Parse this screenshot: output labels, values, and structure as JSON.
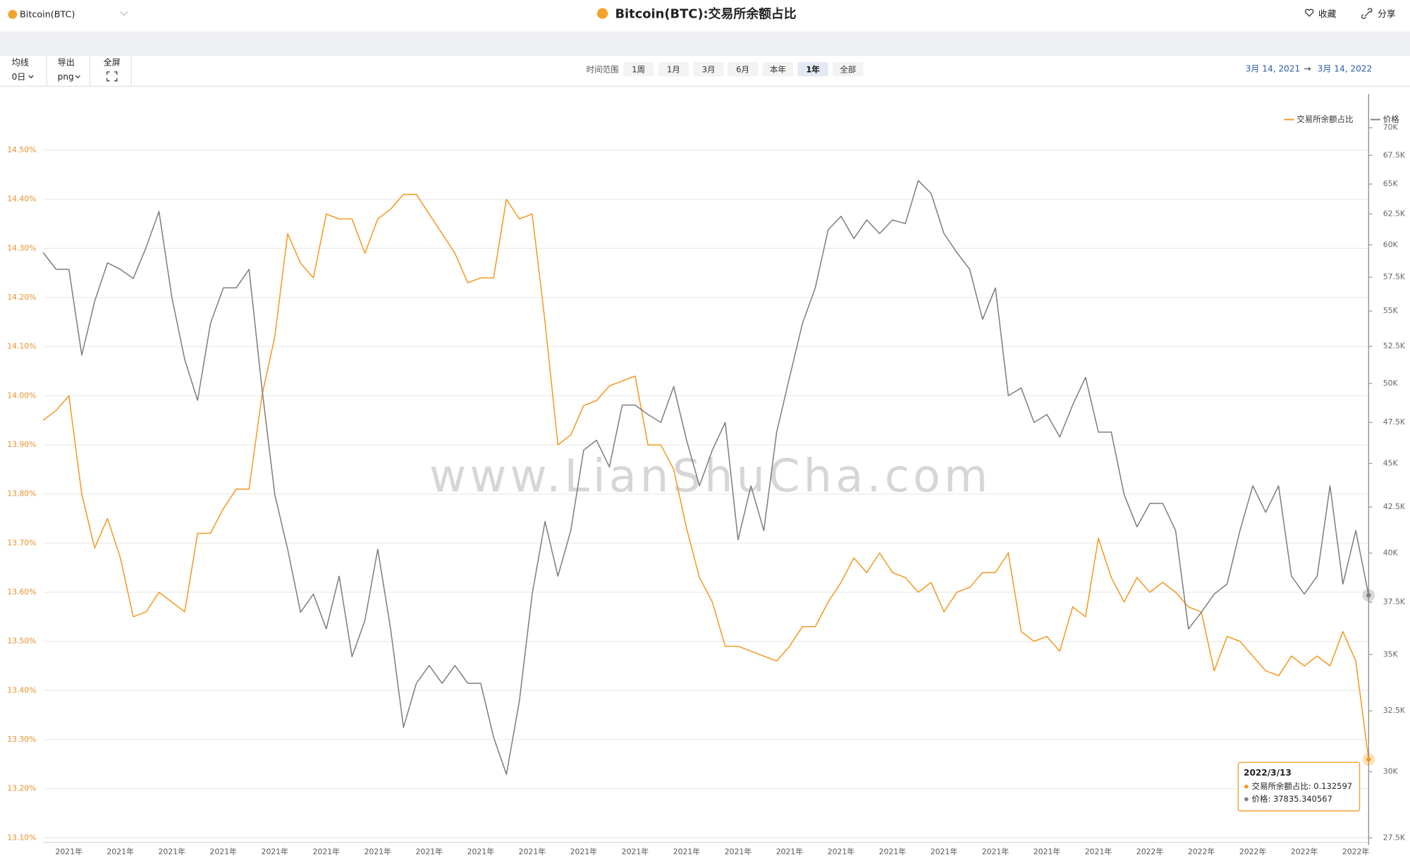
{
  "header": {
    "asset": "Bitcoin(BTC)",
    "title": "Bitcoin(BTC):交易所余额占比",
    "favorite": "收藏",
    "share": "分享"
  },
  "toolbar": {
    "ma_label": "均线",
    "ma_value": "0日",
    "export_label": "导出",
    "export_value": "png",
    "fullscreen": "全屏",
    "range_label": "时间范围",
    "ranges": [
      "1周",
      "1月",
      "3月",
      "6月",
      "本年",
      "1年",
      "全部"
    ],
    "active_range": "1年",
    "date_from": "3月 14, 2021",
    "arrow": "→",
    "date_to": "3月 14, 2022"
  },
  "chart_data": {
    "type": "line",
    "watermark": "www.LianShuCha.com",
    "categories": [
      null,
      null,
      "2021年",
      null,
      null,
      null,
      "2021年",
      null,
      null,
      null,
      "2021年",
      null,
      null,
      null,
      "2021年",
      null,
      null,
      null,
      "2021年",
      null,
      null,
      null,
      "2021年",
      null,
      null,
      null,
      "2021年",
      null,
      null,
      null,
      "2021年",
      null,
      null,
      null,
      "2021年",
      null,
      null,
      null,
      "2021年",
      null,
      null,
      null,
      "2021年",
      null,
      null,
      null,
      "2021年",
      null,
      null,
      null,
      "2021年",
      null,
      null,
      null,
      "2021年",
      null,
      null,
      null,
      "2021年",
      null,
      null,
      null,
      "2021年",
      null,
      null,
      null,
      "2021年",
      null,
      null,
      null,
      "2021年",
      null,
      null,
      null,
      "2021年",
      null,
      null,
      null,
      "2021年",
      null,
      null,
      null,
      "2021年",
      null,
      null,
      null,
      "2022年",
      null,
      null,
      null,
      "2022年",
      null,
      null,
      null,
      "2022年",
      null,
      null,
      null,
      "2022年",
      null,
      null,
      null,
      "2022年",
      null
    ],
    "series": [
      {
        "name": "交易所余额占比",
        "color": "#f39a21",
        "axis": "y",
        "values": [
          13.95,
          13.97,
          14.0,
          13.8,
          13.69,
          13.75,
          13.67,
          13.55,
          13.56,
          13.6,
          13.58,
          13.56,
          13.72,
          13.72,
          13.77,
          13.81,
          13.81,
          14.0,
          14.12,
          14.33,
          14.27,
          14.24,
          14.37,
          14.36,
          14.36,
          14.29,
          14.36,
          14.38,
          14.41,
          14.41,
          14.37,
          14.33,
          14.29,
          14.23,
          14.24,
          14.24,
          14.4,
          14.36,
          14.37,
          14.15,
          13.9,
          13.92,
          13.98,
          13.99,
          14.02,
          14.03,
          14.04,
          13.9,
          13.9,
          13.85,
          13.73,
          13.63,
          13.58,
          13.49,
          13.49,
          13.48,
          13.47,
          13.46,
          13.49,
          13.53,
          13.53,
          13.58,
          13.62,
          13.67,
          13.64,
          13.68,
          13.64,
          13.63,
          13.6,
          13.62,
          13.56,
          13.6,
          13.61,
          13.64,
          13.64,
          13.68,
          13.52,
          13.5,
          13.51,
          13.48,
          13.57,
          13.55,
          13.71,
          13.63,
          13.58,
          13.63,
          13.6,
          13.62,
          13.6,
          13.57,
          13.56,
          13.44,
          13.51,
          13.5,
          13.47,
          13.44,
          13.43,
          13.47,
          13.45,
          13.47,
          13.45,
          13.52,
          13.46,
          13.2597
        ]
      },
      {
        "name": "价格",
        "color": "#7f7f7f",
        "axis": "y2",
        "values": [
          59400,
          58100,
          58100,
          51900,
          55700,
          58600,
          58100,
          57400,
          59800,
          62700,
          56000,
          51600,
          48900,
          54100,
          56700,
          56700,
          58100,
          49700,
          43200,
          40200,
          37000,
          37900,
          36200,
          38800,
          34900,
          36600,
          40200,
          36200,
          31800,
          33700,
          34500,
          33700,
          34500,
          33700,
          33700,
          31400,
          29900,
          32900,
          37900,
          41700,
          38800,
          41200,
          45800,
          46400,
          44800,
          48600,
          48600,
          48000,
          47500,
          49800,
          46400,
          43700,
          45800,
          47500,
          40700,
          43700,
          41200,
          46900,
          50400,
          54100,
          56700,
          61200,
          62300,
          60500,
          62000,
          60900,
          62000,
          61700,
          65300,
          64200,
          60900,
          59400,
          58100,
          54400,
          56700,
          49200,
          49700,
          47500,
          48000,
          46600,
          48600,
          50400,
          46900,
          46900,
          43200,
          41400,
          42700,
          42700,
          41200,
          36200,
          37000,
          37900,
          38400,
          41200,
          43700,
          42200,
          43700,
          38800,
          37900,
          38800,
          43700,
          38400,
          41200,
          37835.34
        ]
      }
    ],
    "ylim": [
      13.1,
      14.6
    ],
    "yticks": [
      {
        "value": 13.1,
        "label": "13.10%"
      },
      {
        "value": 13.2,
        "label": "13.20%"
      },
      {
        "value": 13.3,
        "label": "13.30%"
      },
      {
        "value": 13.4,
        "label": "13.40%"
      },
      {
        "value": 13.5,
        "label": "13.50%"
      },
      {
        "value": 13.6,
        "label": "13.60%"
      },
      {
        "value": 13.7,
        "label": "13.70%"
      },
      {
        "value": 13.8,
        "label": "13.80%"
      },
      {
        "value": 13.9,
        "label": "13.90%"
      },
      {
        "value": 14.0,
        "label": "14.00%"
      },
      {
        "value": 14.1,
        "label": "14.10%"
      },
      {
        "value": 14.2,
        "label": "14.20%"
      },
      {
        "value": 14.3,
        "label": "14.30%"
      },
      {
        "value": 14.4,
        "label": "14.40%"
      },
      {
        "value": 14.5,
        "label": "14.50%"
      }
    ],
    "y2lim": [
      27500,
      72500
    ],
    "y2log": true,
    "y2ticks": [
      {
        "value": 27500,
        "label": "27.5K"
      },
      {
        "value": 30000,
        "label": "30K"
      },
      {
        "value": 32500,
        "label": "32.5K"
      },
      {
        "value": 35000,
        "label": "35K"
      },
      {
        "value": 37500,
        "label": "37.5K"
      },
      {
        "value": 40000,
        "label": "40K"
      },
      {
        "value": 42500,
        "label": "42.5K"
      },
      {
        "value": 45000,
        "label": "45K"
      },
      {
        "value": 47500,
        "label": "47.5K"
      },
      {
        "value": 50000,
        "label": "50K"
      },
      {
        "value": 52500,
        "label": "52.5K"
      },
      {
        "value": 55000,
        "label": "55K"
      },
      {
        "value": 57500,
        "label": "57.5K"
      },
      {
        "value": 60000,
        "label": "60K"
      },
      {
        "value": 62500,
        "label": "62.5K"
      },
      {
        "value": 65000,
        "label": "65K"
      },
      {
        "value": 67500,
        "label": "67.5K"
      },
      {
        "value": 70000,
        "label": "70K"
      }
    ],
    "grid": true,
    "legend": "top-right",
    "tooltip": {
      "title": "2022/3/13",
      "lines": [
        "交易所余额占比: 0.132597",
        "价格: 37835.340567"
      ]
    }
  }
}
